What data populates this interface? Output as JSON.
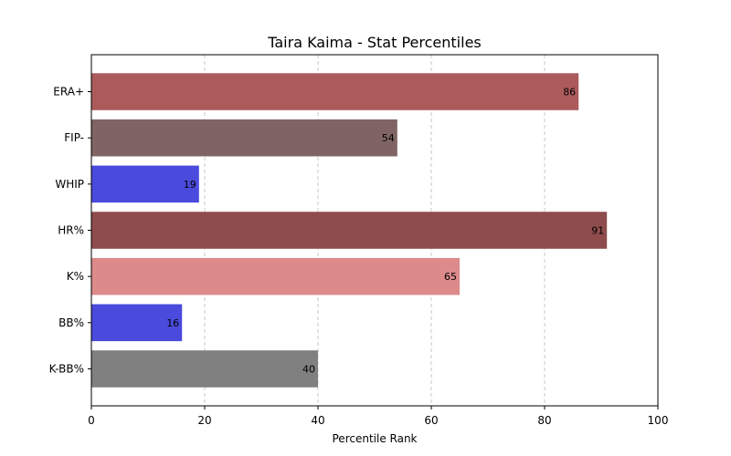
{
  "chart_data": {
    "type": "bar",
    "orientation": "horizontal",
    "title": "Taira Kaima - Stat Percentiles",
    "xlabel": "Percentile Rank",
    "ylabel": "",
    "xlim": [
      0,
      100
    ],
    "xticks": [
      0,
      20,
      40,
      60,
      80,
      100
    ],
    "grid": "x-dashed",
    "categories": [
      "ERA+",
      "FIP-",
      "WHIP",
      "HR%",
      "K%",
      "BB%",
      "K-BB%"
    ],
    "values": [
      86,
      54,
      19,
      91,
      65,
      16,
      40
    ],
    "bar_colors": [
      "#ab5b5b",
      "#806464",
      "#4a4adc",
      "#8f4c4c",
      "#dd8a8a",
      "#4a4adc",
      "#808080"
    ],
    "data_labels": [
      "86",
      "54",
      "19",
      "91",
      "65",
      "16",
      "40"
    ]
  }
}
